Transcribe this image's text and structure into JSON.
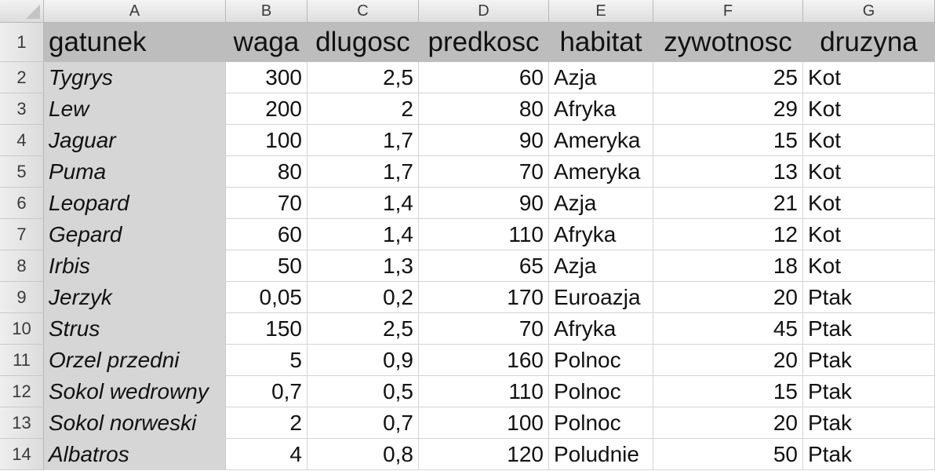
{
  "columns": [
    "A",
    "B",
    "C",
    "D",
    "E",
    "F",
    "G"
  ],
  "rows": [
    "1",
    "2",
    "3",
    "4",
    "5",
    "6",
    "7",
    "8",
    "9",
    "10",
    "11",
    "12",
    "13",
    "14"
  ],
  "header": [
    "gatunek",
    "waga",
    "dlugosc",
    "predkosc",
    "habitat",
    "zywotnosc",
    "druzyna"
  ],
  "data": [
    [
      "Tygrys",
      "300",
      "2,5",
      "60",
      "Azja",
      "25",
      "Kot"
    ],
    [
      "Lew",
      "200",
      "2",
      "80",
      "Afryka",
      "29",
      "Kot"
    ],
    [
      "Jaguar",
      "100",
      "1,7",
      "90",
      "Ameryka",
      "15",
      "Kot"
    ],
    [
      "Puma",
      "80",
      "1,7",
      "70",
      "Ameryka",
      "13",
      "Kot"
    ],
    [
      "Leopard",
      "70",
      "1,4",
      "90",
      "Azja",
      "21",
      "Kot"
    ],
    [
      "Gepard",
      "60",
      "1,4",
      "110",
      "Afryka",
      "12",
      "Kot"
    ],
    [
      "Irbis",
      "50",
      "1,3",
      "65",
      "Azja",
      "18",
      "Kot"
    ],
    [
      "Jerzyk",
      "0,05",
      "0,2",
      "170",
      "Euroazja",
      "20",
      "Ptak"
    ],
    [
      "Strus",
      "150",
      "2,5",
      "70",
      "Afryka",
      "45",
      "Ptak"
    ],
    [
      "Orzel przedni",
      "5",
      "0,9",
      "160",
      "Polnoc",
      "20",
      "Ptak"
    ],
    [
      "Sokol wedrowny",
      "0,7",
      "0,5",
      "110",
      "Polnoc",
      "15",
      "Ptak"
    ],
    [
      "Sokol norweski",
      "2",
      "0,7",
      "100",
      "Polnoc",
      "20",
      "Ptak"
    ],
    [
      "Albatros",
      "4",
      "0,8",
      "120",
      "Poludnie",
      "50",
      "Ptak"
    ]
  ]
}
